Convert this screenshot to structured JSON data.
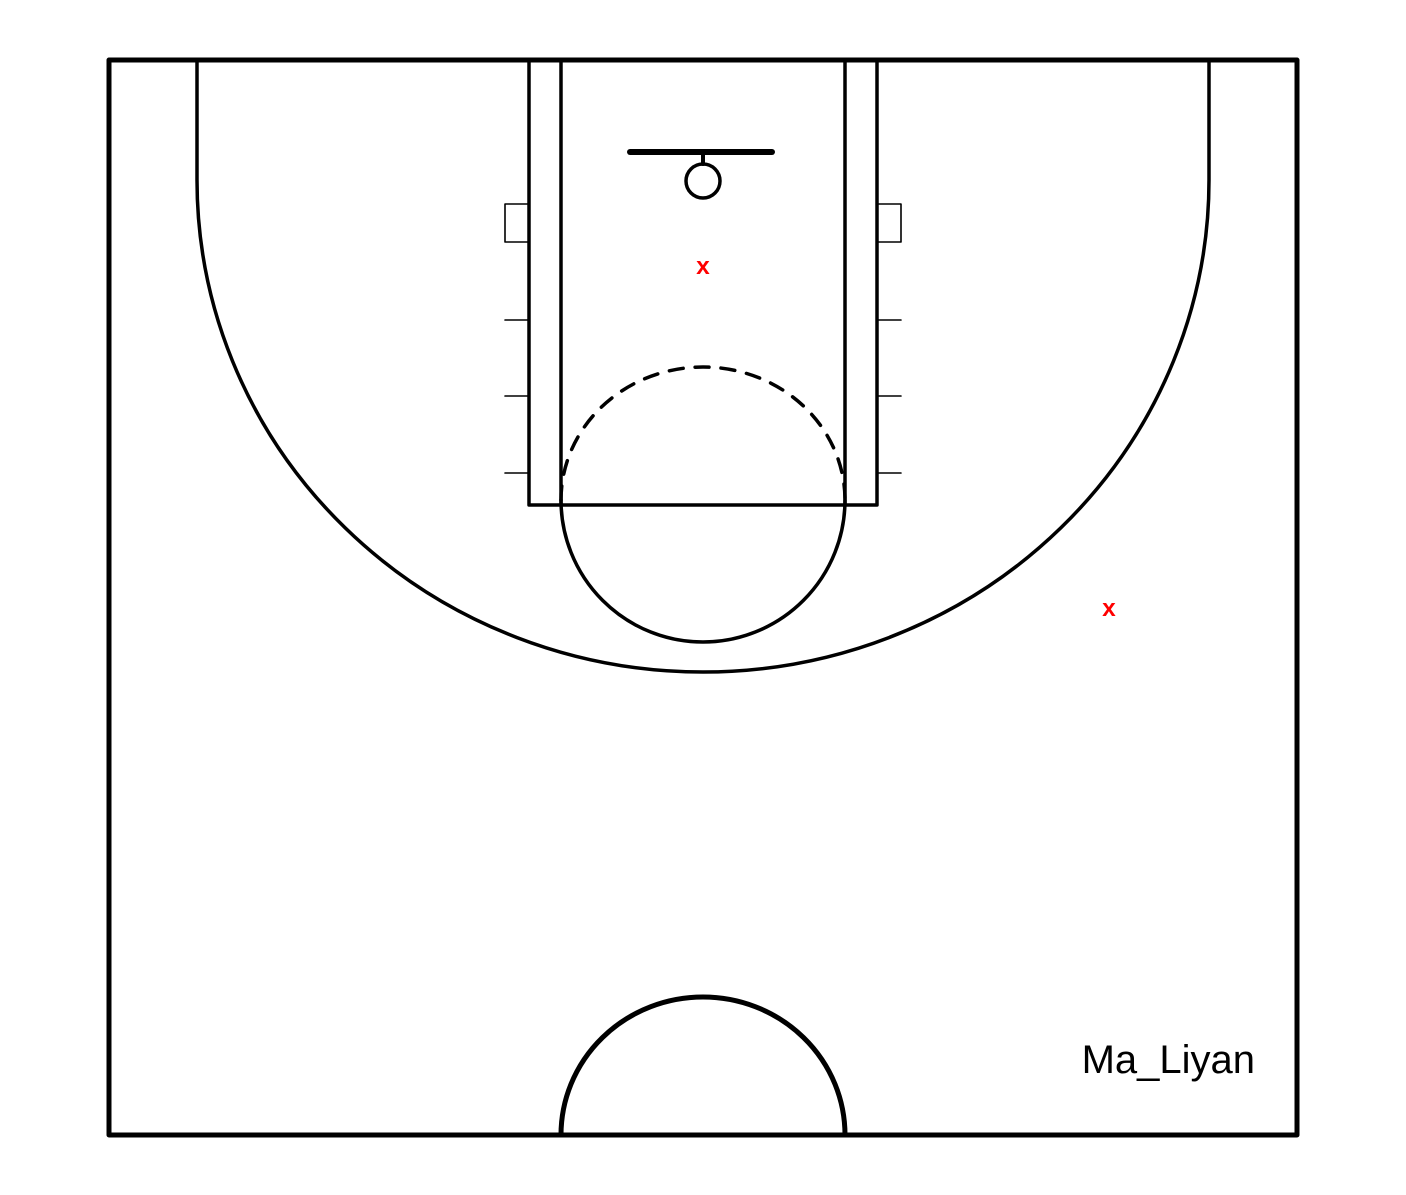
{
  "court": {
    "label": "Ma_Liyan",
    "line_color": "#000000",
    "background": "#ffffff"
  },
  "shots": [
    {
      "label": "x",
      "color": "#ff0000"
    },
    {
      "label": "x",
      "color": "#ff0000"
    }
  ]
}
